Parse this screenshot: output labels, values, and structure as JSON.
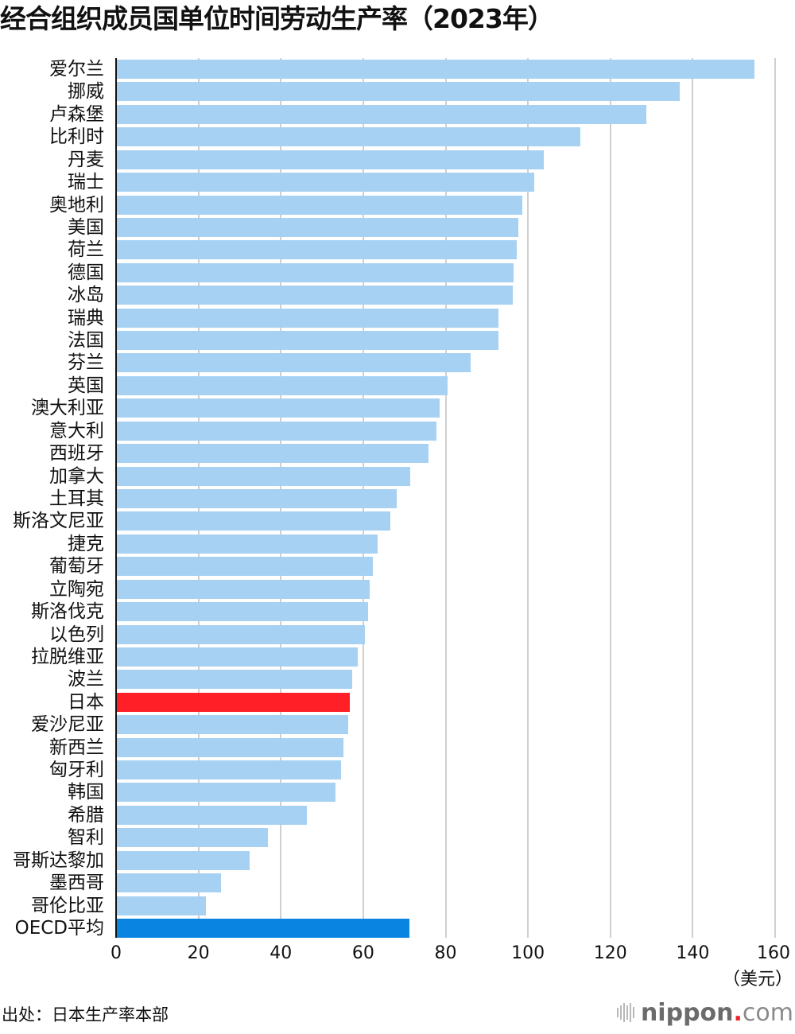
{
  "header": {
    "title": "经合组织成员国单位时间劳动生产率（2023年）"
  },
  "axis": {
    "ticks": [
      "0",
      "20",
      "40",
      "60",
      "80",
      "100",
      "120",
      "140",
      "160"
    ],
    "unit": "（美元）"
  },
  "footer": {
    "source": "出处：日本生产率本部",
    "logo_bold": "nippon",
    "logo_dot": ".",
    "logo_light": "com"
  },
  "colors": {
    "bar_default": "#a6d1f3",
    "bar_japan": "#ff1f26",
    "bar_oecd_average": "#0a84e1",
    "gridline": "#cfcfcf",
    "axis": "#111111"
  },
  "chart_data": {
    "type": "bar",
    "orientation": "horizontal",
    "title": "经合组织成员国单位时间劳动生产率（2023年）",
    "xlabel": "（美元）",
    "ylabel": "",
    "xlim": [
      0,
      160
    ],
    "xticks": [
      0,
      20,
      40,
      60,
      80,
      100,
      120,
      140,
      160
    ],
    "grid": true,
    "legend": null,
    "source": "出处：日本生产率本部",
    "categories": [
      "爱尔兰",
      "挪威",
      "卢森堡",
      "比利时",
      "丹麦",
      "瑞士",
      "奥地利",
      "美国",
      "荷兰",
      "德国",
      "冰岛",
      "瑞典",
      "法国",
      "芬兰",
      "英国",
      "澳大利亚",
      "意大利",
      "西班牙",
      "加拿大",
      "土耳其",
      "斯洛文尼亚",
      "捷克",
      "葡萄牙",
      "立陶宛",
      "斯洛伐克",
      "以色列",
      "拉脱维亚",
      "波兰",
      "日本",
      "爱沙尼亚",
      "新西兰",
      "匈牙利",
      "韩国",
      "希腊",
      "智利",
      "哥斯达黎加",
      "墨西哥",
      "哥伦比亚",
      "OECD平均"
    ],
    "values": [
      154.9,
      136.8,
      128.8,
      112.7,
      103.9,
      101.5,
      98.6,
      97.7,
      97.3,
      96.5,
      96.3,
      92.9,
      92.8,
      86.1,
      80.5,
      78.6,
      77.8,
      75.9,
      71.4,
      68.1,
      66.6,
      63.5,
      62.4,
      61.6,
      61.2,
      60.4,
      58.7,
      57.4,
      56.8,
      56.4,
      55.2,
      54.7,
      53.3,
      46.3,
      36.9,
      32.4,
      25.5,
      21.8,
      71.2
    ],
    "highlight": {
      "日本": "#ff1f26",
      "OECD平均": "#0a84e1"
    }
  }
}
